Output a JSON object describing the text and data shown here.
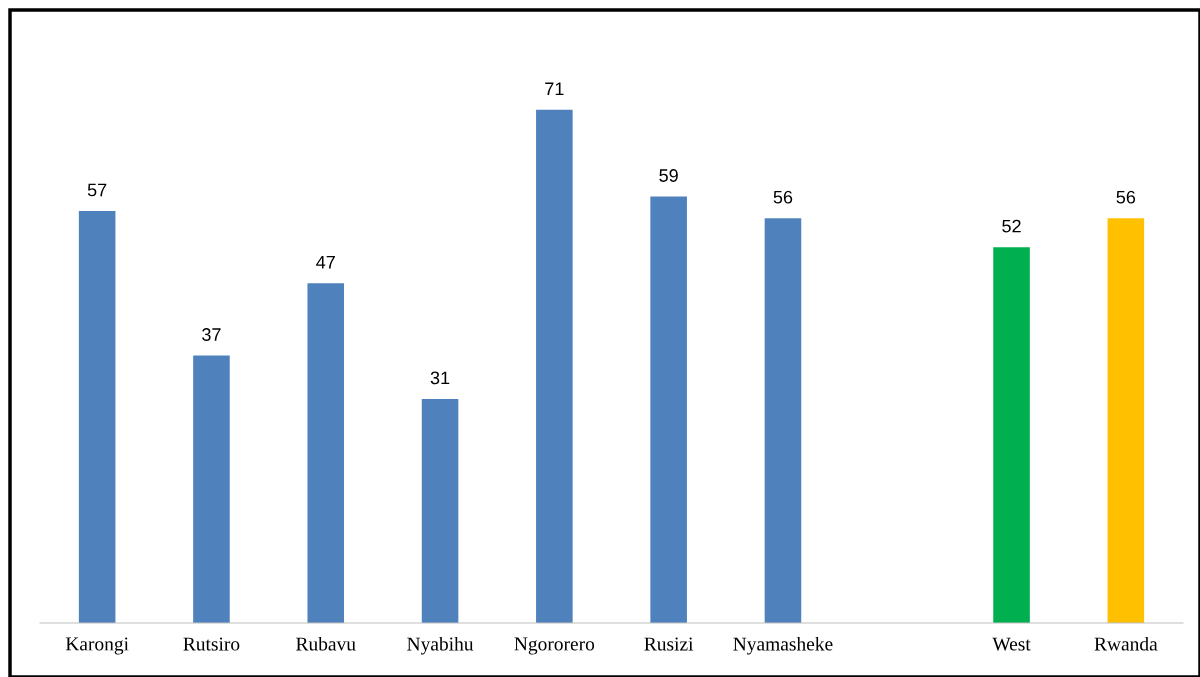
{
  "chart_data": {
    "type": "bar",
    "categories": [
      "Karongi",
      "Rutsiro",
      "Rubavu",
      "Nyabihu",
      "Ngororero",
      "Rusizi",
      "Nyamasheke",
      null,
      "West",
      "Rwanda"
    ],
    "values": [
      57,
      37,
      47,
      31,
      71,
      59,
      56,
      null,
      52,
      56
    ],
    "colors": [
      "#4f81bd",
      "#4f81bd",
      "#4f81bd",
      "#4f81bd",
      "#4f81bd",
      "#4f81bd",
      "#4f81bd",
      "#4f81bd",
      "#00b050",
      "#ffc000"
    ],
    "data_labels": true,
    "grid": false,
    "legend": false
  }
}
